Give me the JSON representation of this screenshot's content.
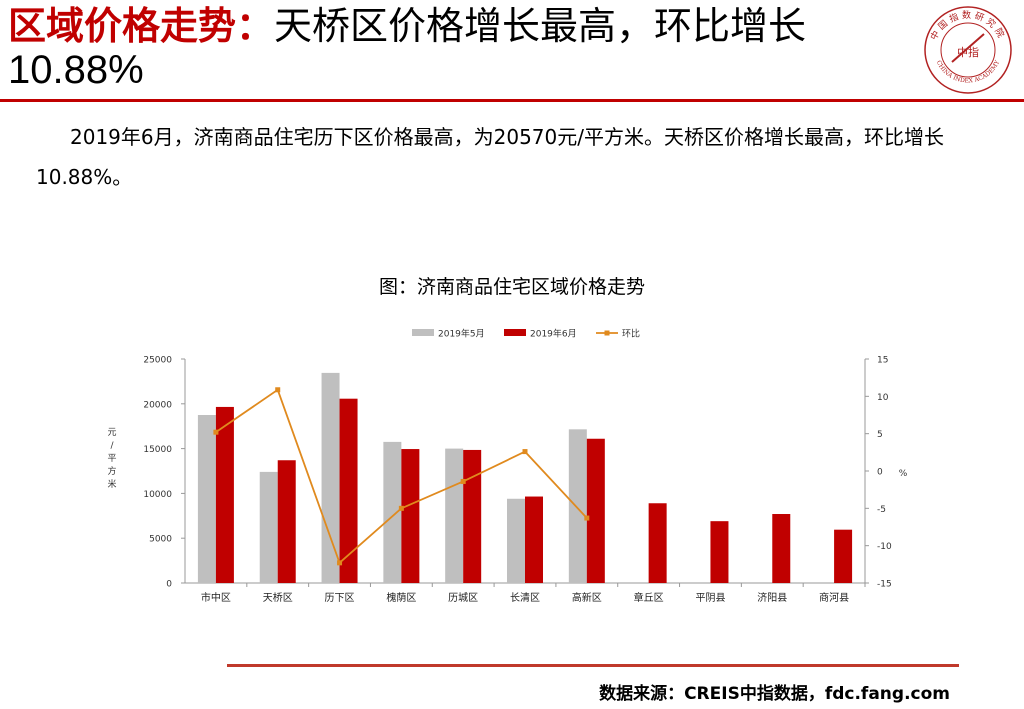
{
  "title": {
    "prefix": "区域价格走势：",
    "line1": "天桥区价格增长最高，环比增长",
    "line2": "10.88%"
  },
  "logo": {
    "ring_text": "中国指数研究院",
    "center_text": "中指",
    "en_text": "CHINA INDEX ACADEMY"
  },
  "summary": "2019年6月，济南商品住宅历下区价格最高，为20570元/平方米。天桥区价格增长最高，环比增长10.88%。",
  "chart_caption": "图：济南商品住宅区域价格走势",
  "chart_data": {
    "type": "bar",
    "categories": [
      "市中区",
      "天桥区",
      "历下区",
      "槐荫区",
      "历城区",
      "长清区",
      "高新区",
      "章丘区",
      "平阴县",
      "济阳县",
      "商河县"
    ],
    "series": [
      {
        "name": "2019年5月",
        "type": "bar",
        "axis": "left",
        "color": "#bfbfbf",
        "values": [
          18750,
          12400,
          23450,
          15750,
          15000,
          9400,
          17150,
          null,
          null,
          null,
          null
        ]
      },
      {
        "name": "2019年6月",
        "type": "bar",
        "axis": "left",
        "color": "#c00000",
        "values": [
          19650,
          13700,
          20570,
          14950,
          14850,
          9650,
          16100,
          8900,
          6900,
          7700,
          5950
        ]
      },
      {
        "name": "环比",
        "type": "line",
        "axis": "right",
        "color": "#e08a1e",
        "values": [
          5.2,
          10.88,
          -12.3,
          -5.0,
          -1.4,
          2.6,
          -6.3,
          null,
          null,
          null,
          null
        ]
      }
    ],
    "ylabel": "元/平方米",
    "y2label": "%",
    "ylim": [
      0,
      25000
    ],
    "yticks": [
      "25000",
      "20000",
      "15000",
      "10000",
      "5000",
      "0"
    ],
    "y2lim": [
      -15,
      15
    ],
    "y2ticks": [
      "15",
      "10",
      "5",
      "0",
      "-5",
      "-10",
      "-15"
    ],
    "legend_position": "top"
  },
  "source": "数据来源：CREIS中指数据，fdc.fang.com"
}
